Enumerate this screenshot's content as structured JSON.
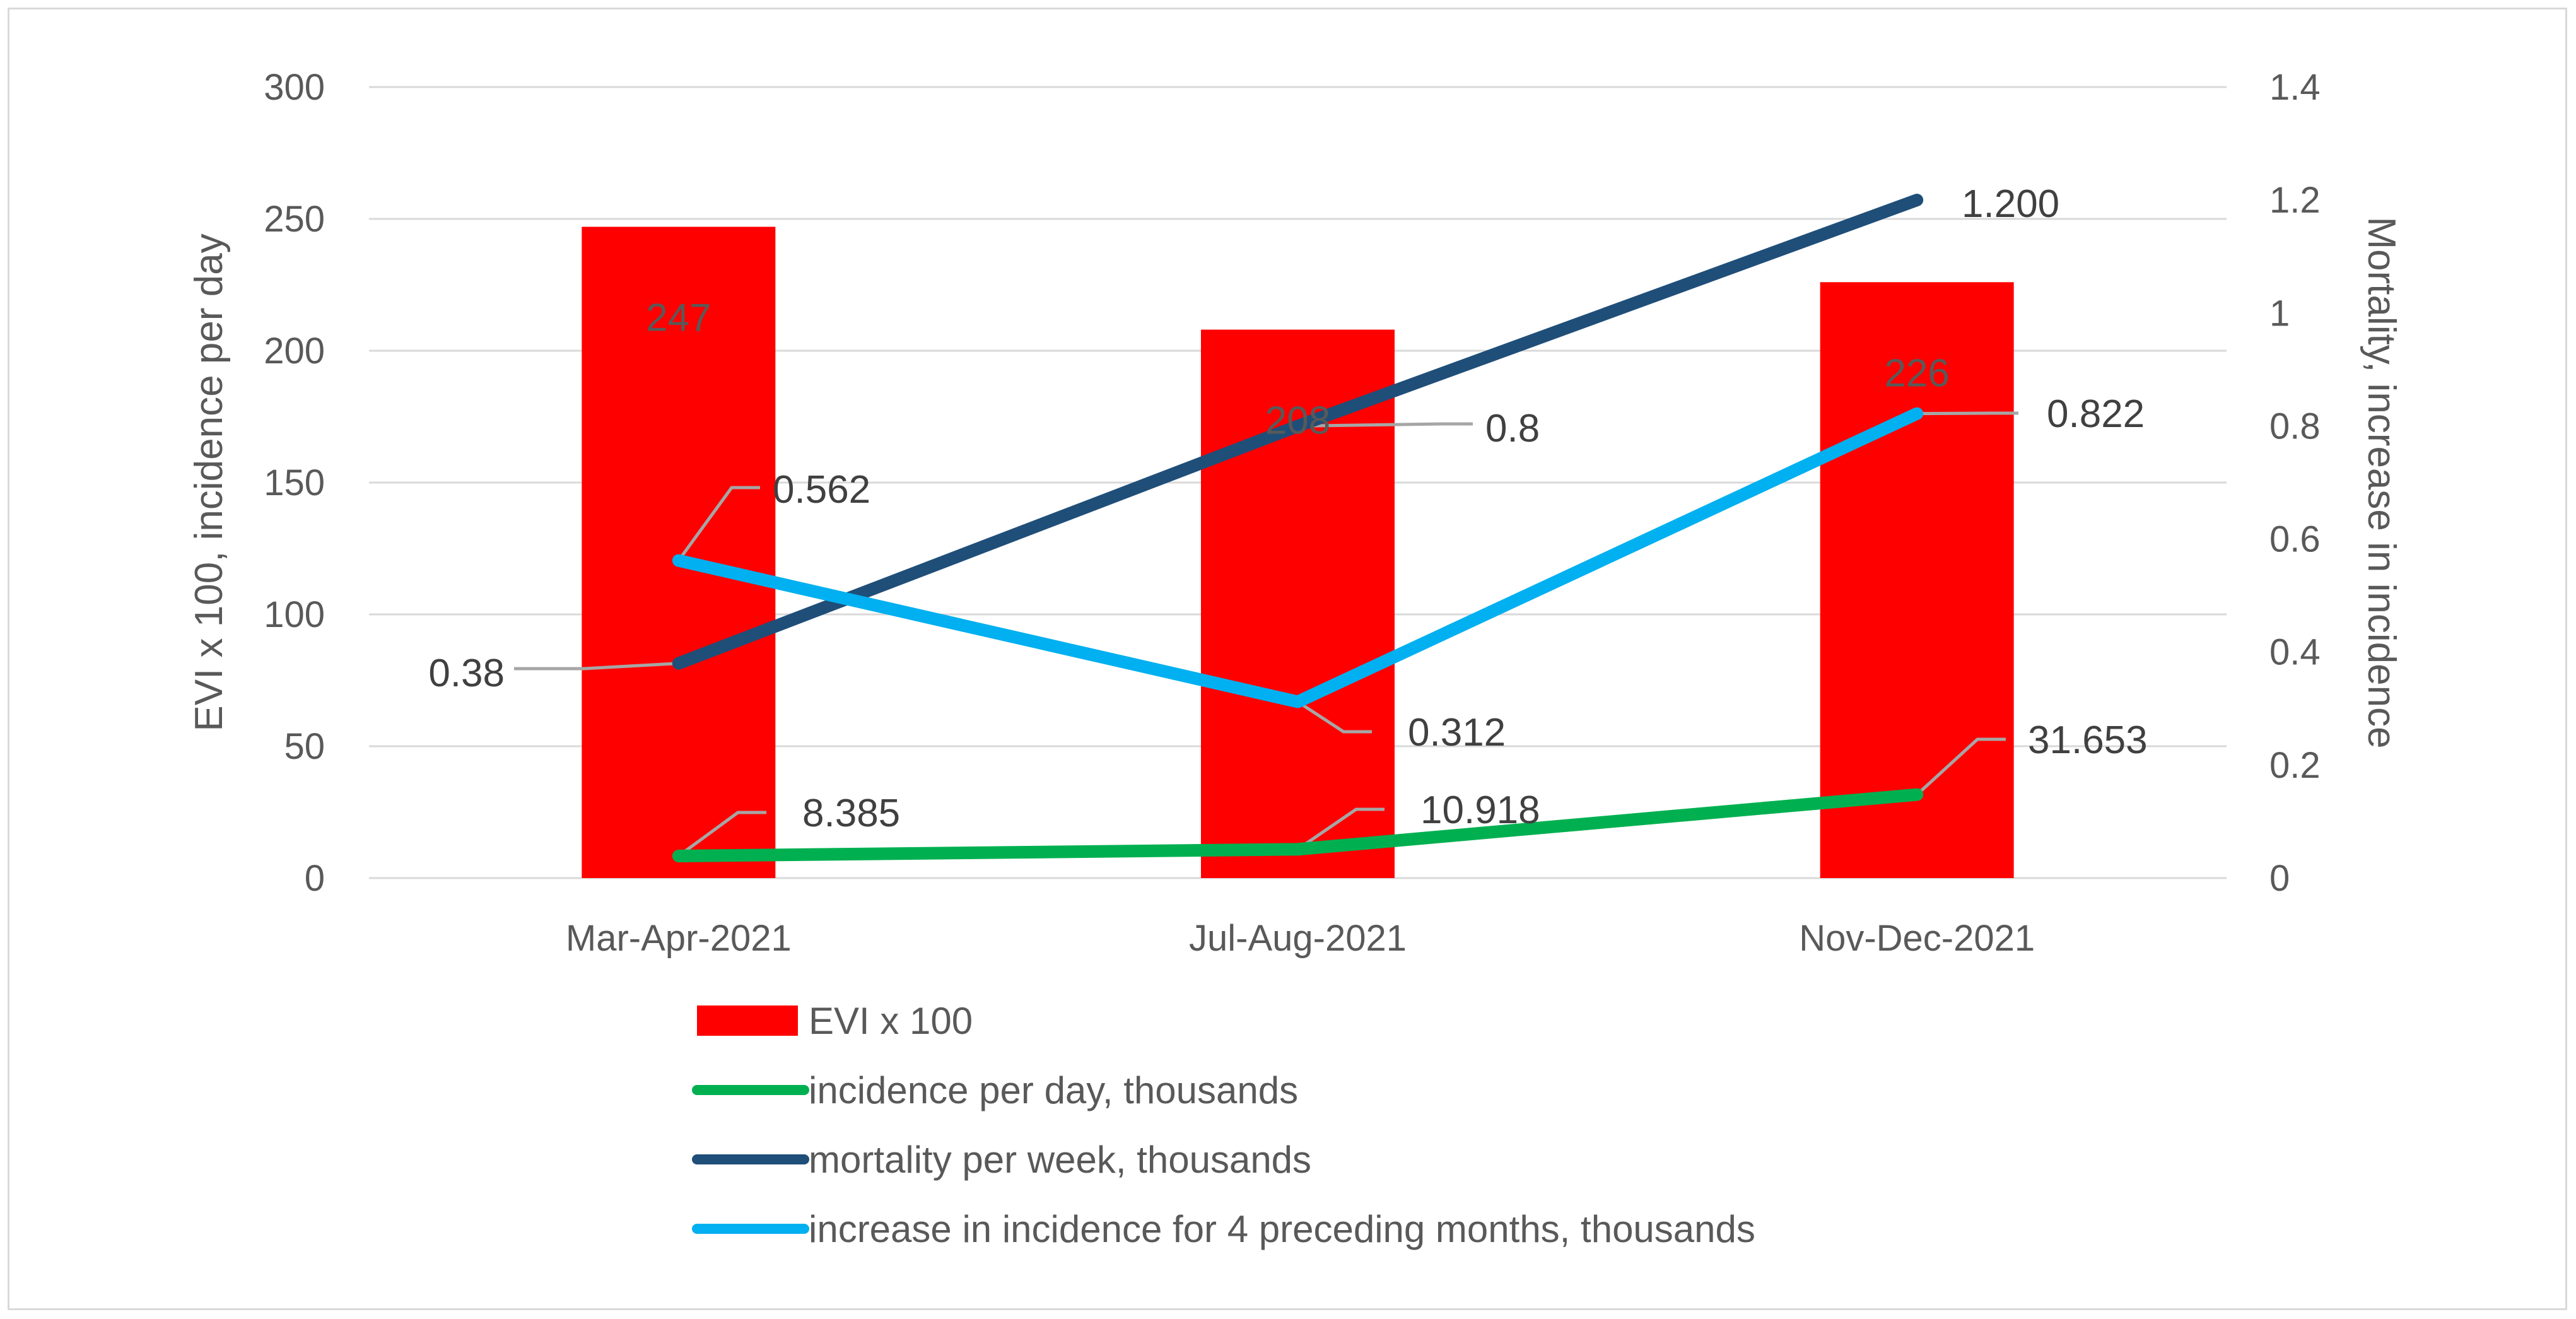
{
  "chart_data": {
    "type": "bar",
    "title": "",
    "categories": [
      "Mar-Apr-2021",
      "Jul-Aug-2021",
      "Nov-Dec-2021"
    ],
    "y_left": {
      "label": "EVI x 100, incidence per day",
      "ylim": [
        0,
        300
      ],
      "ticks": [
        "0",
        "50",
        "100",
        "150",
        "200",
        "250",
        "300"
      ]
    },
    "y_right": {
      "label": "Mortality, increase in incidence",
      "ylim": [
        0,
        1.4
      ],
      "ticks": [
        "0",
        "0.2",
        "0.4",
        "0.6",
        "0.8",
        "1",
        "1.2",
        "1.4"
      ]
    },
    "grid": true,
    "legend_position": "bottom",
    "series": [
      {
        "name": "EVI x 100",
        "kind": "bar",
        "axis": "left",
        "color": "#ff0000",
        "values": [
          247,
          208,
          226
        ],
        "labels": [
          "247",
          "208",
          "226"
        ]
      },
      {
        "name": "incidence per day, thousands",
        "kind": "line",
        "axis": "left",
        "color": "#00b050",
        "values": [
          8.385,
          10.918,
          31.653
        ],
        "labels": [
          "8.385",
          "10.918",
          "31.653"
        ]
      },
      {
        "name": "mortality per week, thousands",
        "kind": "line",
        "axis": "right",
        "color": "#1f4e79",
        "values": [
          0.38,
          0.8,
          1.2
        ],
        "labels": [
          "0.38",
          "0.8",
          "1.200"
        ]
      },
      {
        "name": "increase in incidence for 4 preceding months, thousands",
        "kind": "line",
        "axis": "right",
        "color": "#00b0f0",
        "values": [
          0.562,
          0.312,
          0.822
        ],
        "labels": [
          "0.562",
          "0.312",
          "0.822"
        ]
      }
    ]
  }
}
